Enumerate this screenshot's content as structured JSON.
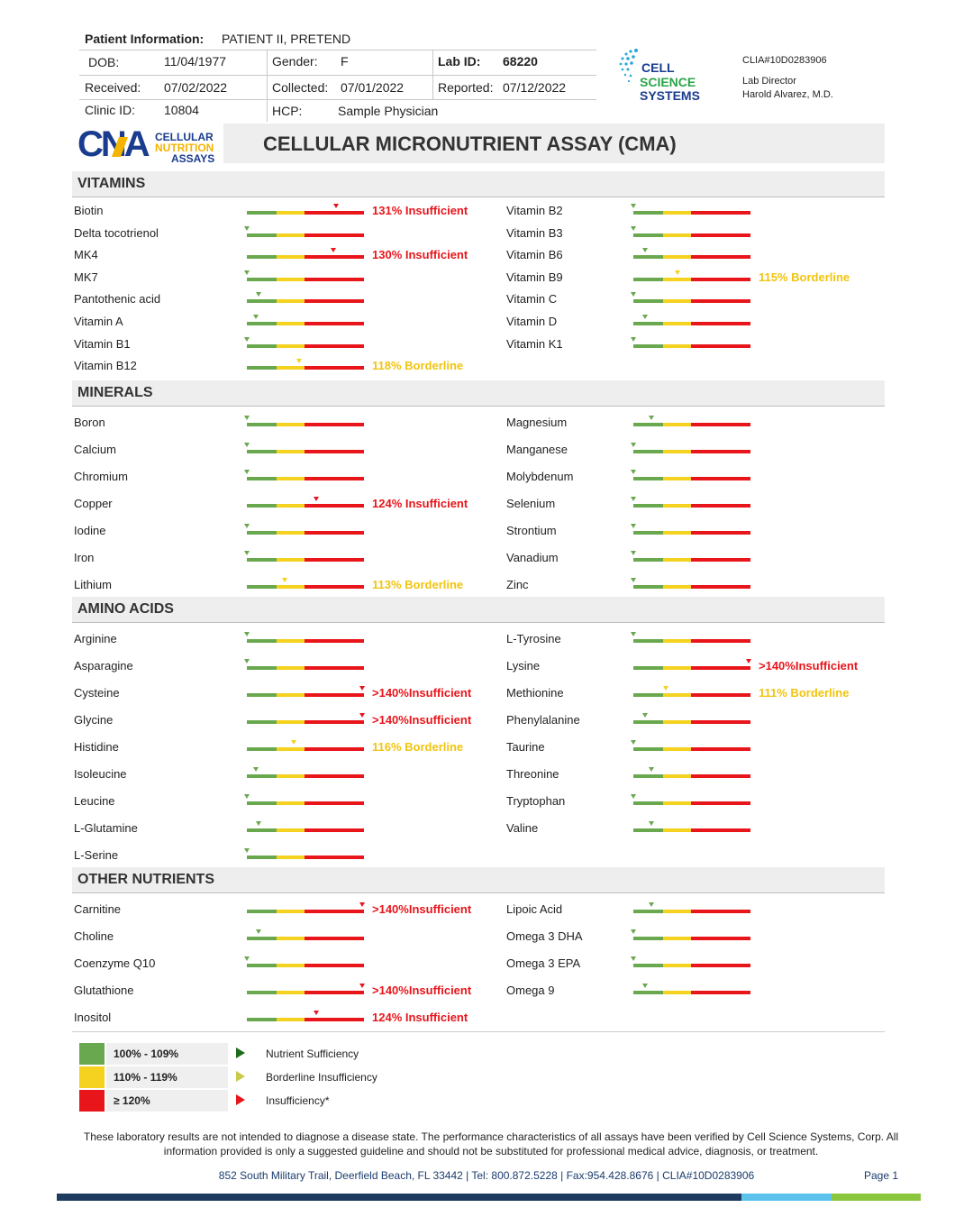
{
  "patient": {
    "info_label": "Patient Information:",
    "info_value": "PATIENT II, PRETEND",
    "dob_label": "DOB:",
    "dob": "11/04/1977",
    "gender_label": "Gender:",
    "gender": "F",
    "labid_label": "Lab ID:",
    "labid": "68220",
    "received_label": "Received:",
    "received": "07/02/2022",
    "collected_label": "Collected:",
    "collected": "07/01/2022",
    "reported_label": "Reported:",
    "reported": "07/12/2022",
    "clinic_label": "Clinic ID:",
    "clinic": "10804",
    "hcp_label": "HCP:",
    "hcp": "Sample Physician"
  },
  "lab": {
    "logo_line1": "CELL",
    "logo_line2": "SCIENCE",
    "logo_line3": "SYSTEMS",
    "clia": "CLIA#10D0283906",
    "director_title": "Lab Director",
    "director_name": "Harold Alvarez, M.D."
  },
  "brand": {
    "letters": "CNA",
    "line1": "CELLULAR",
    "line2": "NUTRITION",
    "line3": "ASSAYS"
  },
  "title": "CELLULAR MICRONUTRIENT ASSAY (CMA)",
  "colors": {
    "green": "#6aa84f",
    "yellow": "#f4d21f",
    "red": "#e8151b",
    "navy": "#1a3c6e"
  },
  "sections": [
    {
      "title": "VITAMINS",
      "rows": [
        {
          "left": {
            "name": "Biotin",
            "pct": 131,
            "status": "131% Insufficient",
            "level": "ins"
          },
          "right": {
            "name": "Vitamin B2",
            "pct": 100
          }
        },
        {
          "left": {
            "name": "Delta tocotrienol",
            "pct": 100
          },
          "right": {
            "name": "Vitamin B3",
            "pct": 100
          }
        },
        {
          "left": {
            "name": "MK4",
            "pct": 130,
            "status": "130% Insufficient",
            "level": "ins"
          },
          "right": {
            "name": "Vitamin B6",
            "pct": 104
          }
        },
        {
          "left": {
            "name": "MK7",
            "pct": 100
          },
          "right": {
            "name": "Vitamin B9",
            "pct": 115,
            "status": "115% Borderline",
            "level": "bor"
          }
        },
        {
          "left": {
            "name": "Pantothenic acid",
            "pct": 104
          },
          "right": {
            "name": "Vitamin C",
            "pct": 100
          }
        },
        {
          "left": {
            "name": "Vitamin A",
            "pct": 103
          },
          "right": {
            "name": "Vitamin D",
            "pct": 104
          }
        },
        {
          "left": {
            "name": "Vitamin B1",
            "pct": 100
          },
          "right": {
            "name": "Vitamin K1",
            "pct": 100
          }
        },
        {
          "left": {
            "name": "Vitamin B12",
            "pct": 118,
            "status": "118% Borderline",
            "level": "bor"
          },
          "right": null
        }
      ]
    },
    {
      "title": "MINERALS",
      "rows": [
        {
          "left": {
            "name": "Boron",
            "pct": 100
          },
          "right": {
            "name": "Magnesium",
            "pct": 106
          }
        },
        {
          "left": {
            "name": "Calcium",
            "pct": 100
          },
          "right": {
            "name": "Manganese",
            "pct": 100
          }
        },
        {
          "left": {
            "name": "Chromium",
            "pct": 100
          },
          "right": {
            "name": "Molybdenum",
            "pct": 100
          }
        },
        {
          "left": {
            "name": "Copper",
            "pct": 124,
            "status": "124% Insufficient",
            "level": "ins"
          },
          "right": {
            "name": "Selenium",
            "pct": 100
          }
        },
        {
          "left": {
            "name": "Iodine",
            "pct": 100
          },
          "right": {
            "name": "Strontium",
            "pct": 100
          }
        },
        {
          "left": {
            "name": "Iron",
            "pct": 100
          },
          "right": {
            "name": "Vanadium",
            "pct": 100
          }
        },
        {
          "left": {
            "name": "Lithium",
            "pct": 113,
            "status": "113% Borderline",
            "level": "bor"
          },
          "right": {
            "name": "Zinc",
            "pct": 100
          }
        }
      ]
    },
    {
      "title": "AMINO ACIDS",
      "rows": [
        {
          "left": {
            "name": "Arginine",
            "pct": 100
          },
          "right": {
            "name": "L-Tyrosine",
            "pct": 100
          }
        },
        {
          "left": {
            "name": "Asparagine",
            "pct": 100
          },
          "right": {
            "name": "Lysine",
            "pct": 140,
            "status": ">140%Insufficient",
            "level": "ins"
          }
        },
        {
          "left": {
            "name": "Cysteine",
            "pct": 140,
            "status": ">140%Insufficient",
            "level": "ins"
          },
          "right": {
            "name": "Methionine",
            "pct": 111,
            "status": "111% Borderline",
            "level": "bor"
          }
        },
        {
          "left": {
            "name": "Glycine",
            "pct": 140,
            "status": ">140%Insufficient",
            "level": "ins"
          },
          "right": {
            "name": "Phenylalanine",
            "pct": 104
          }
        },
        {
          "left": {
            "name": "Histidine",
            "pct": 116,
            "status": "116% Borderline",
            "level": "bor"
          },
          "right": {
            "name": "Taurine",
            "pct": 100
          }
        },
        {
          "left": {
            "name": "Isoleucine",
            "pct": 103
          },
          "right": {
            "name": "Threonine",
            "pct": 106
          }
        },
        {
          "left": {
            "name": "Leucine",
            "pct": 100
          },
          "right": {
            "name": "Tryptophan",
            "pct": 100
          }
        },
        {
          "left": {
            "name": "L-Glutamine",
            "pct": 104
          },
          "right": {
            "name": "Valine",
            "pct": 106
          }
        },
        {
          "left": {
            "name": "L-Serine",
            "pct": 100
          },
          "right": null
        }
      ]
    },
    {
      "title": "OTHER NUTRIENTS",
      "rows": [
        {
          "left": {
            "name": "Carnitine",
            "pct": 140,
            "status": ">140%Insufficient",
            "level": "ins"
          },
          "right": {
            "name": "Lipoic Acid",
            "pct": 106
          }
        },
        {
          "left": {
            "name": "Choline",
            "pct": 104
          },
          "right": {
            "name": "Omega 3 DHA",
            "pct": 100
          }
        },
        {
          "left": {
            "name": "Coenzyme Q10",
            "pct": 100
          },
          "right": {
            "name": "Omega 3 EPA",
            "pct": 100
          }
        },
        {
          "left": {
            "name": "Glutathione",
            "pct": 140,
            "status": ">140%Insufficient",
            "level": "ins"
          },
          "right": {
            "name": "Omega 9",
            "pct": 104
          }
        },
        {
          "left": {
            "name": "Inositol",
            "pct": 124,
            "status": "124% Insufficient",
            "level": "ins"
          },
          "right": null
        }
      ]
    }
  ],
  "legend": [
    {
      "range": "100% - 109%",
      "desc": "Nutrient Sufficiency",
      "color": "#6aa84f",
      "arrow": "#1e6b1e"
    },
    {
      "range": "110% - 119%",
      "desc": "Borderline Insufficiency",
      "color": "#f4d21f",
      "arrow": "#c9c94a"
    },
    {
      "range": "≥ 120%",
      "desc": "Insufficiency*",
      "color": "#e8151b",
      "arrow": "#e8151b"
    }
  ],
  "footer": {
    "disclaimer": "These laboratory results are not intended to diagnose a disease state.  The performance characteristics of all assays have been verified by Cell Science Systems, Corp. All information provided is only a suggested guideline and should not be substituted for professional medical advice, diagnosis, or treatment.",
    "address": "852 South Military Trail, Deerfield Beach, FL 33442   |   Tel: 800.872.5228   |   Fax:954.428.8676   |   CLIA#10D0283906",
    "page": "Page 1"
  }
}
